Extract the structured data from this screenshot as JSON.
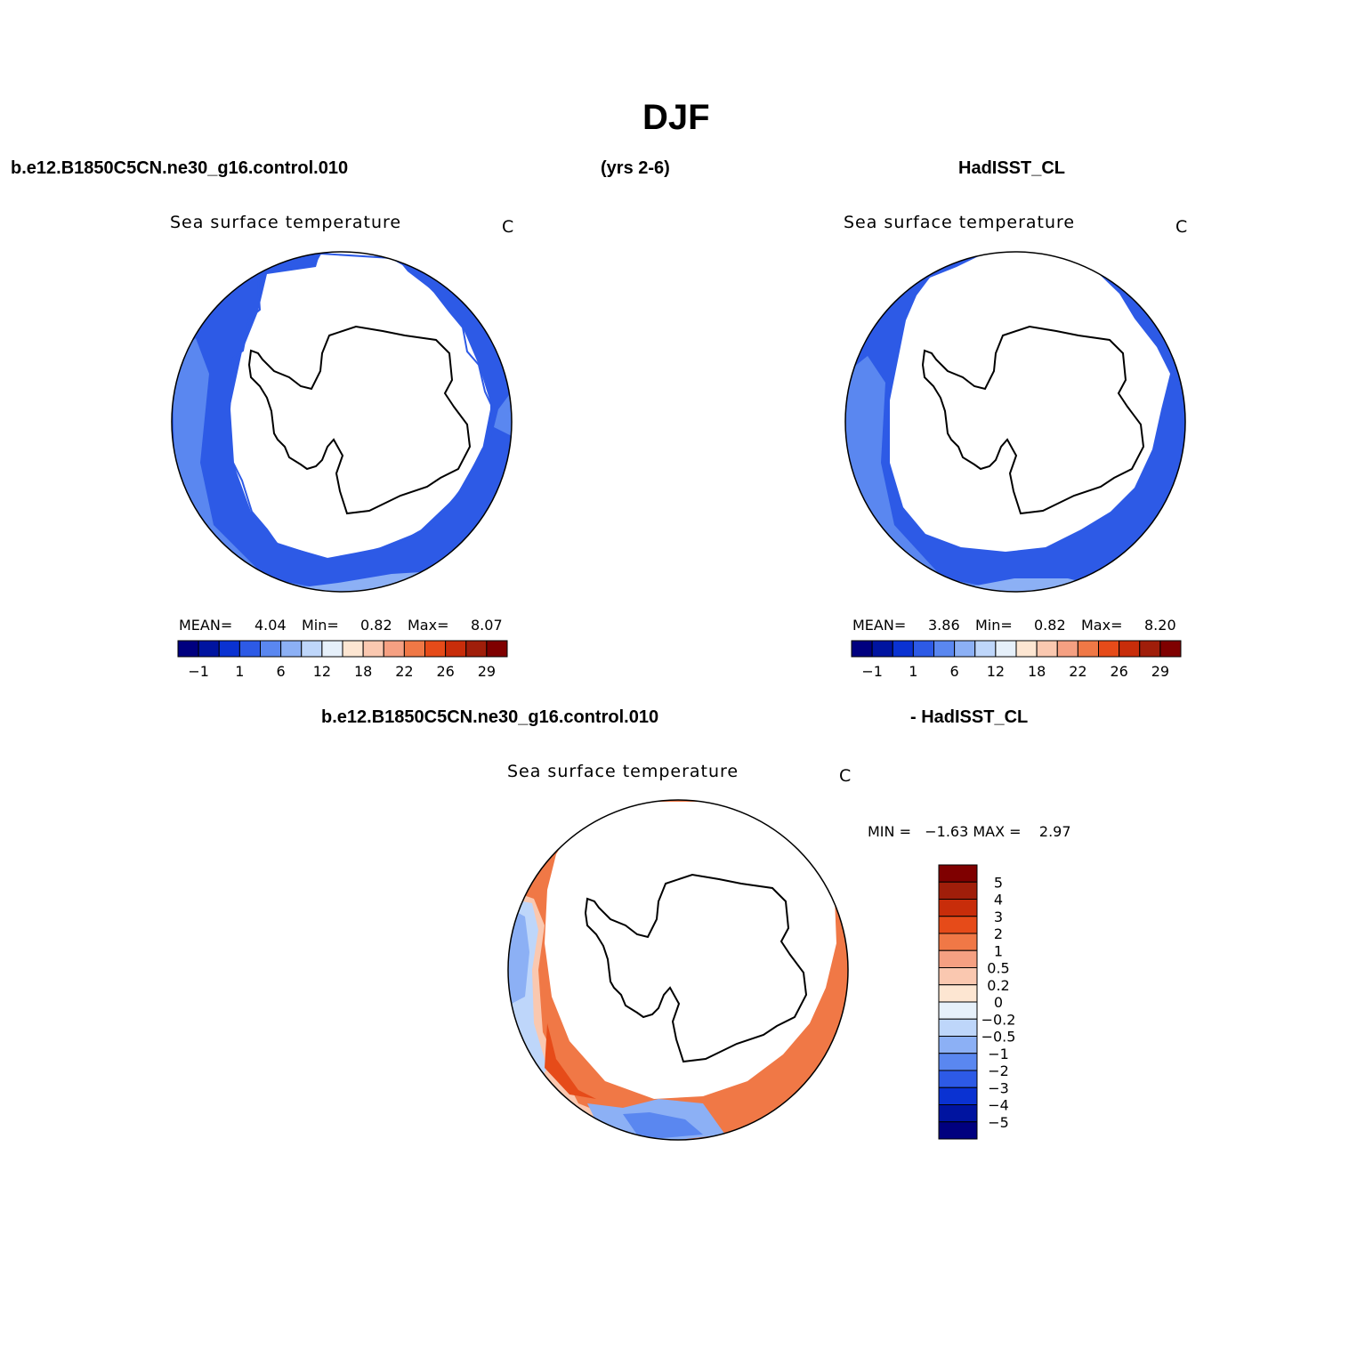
{
  "title": "DJF",
  "header": {
    "case_name": "b.e12.B1850C5CN.ne30_g16.control.010",
    "years": "(yrs 2-6)",
    "obs_name": "HadISST_CL",
    "diff_case_name": "b.e12.B1850C5CN.ne30_g16.control.010",
    "diff_obs_name": "- HadISST_CL"
  },
  "panels": {
    "model": {
      "title": "Sea surface temperature",
      "unit": "C",
      "mean_label": "MEAN=",
      "mean": "4.04",
      "min_label": "Min=",
      "min": "0.82",
      "max_label": "Max=",
      "max": "8.07"
    },
    "obs": {
      "title": "Sea surface temperature",
      "unit": "C",
      "mean_label": "MEAN=",
      "mean": "3.86",
      "min_label": "Min=",
      "min": "0.82",
      "max_label": "Max=",
      "max": "8.20"
    },
    "diff": {
      "title": "Sea surface temperature",
      "unit": "C",
      "minmax": "MIN =   −1.63 MAX =    2.97"
    }
  },
  "colorbar_abs": {
    "colors": [
      "#00007f",
      "#0014a0",
      "#0a32d2",
      "#2d5ae6",
      "#5a87f0",
      "#8cb0f5",
      "#bed6fa",
      "#e6f0fa",
      "#fde6d2",
      "#fac8b0",
      "#f5a082",
      "#f07846",
      "#e64b19",
      "#c82d0a",
      "#a01e0a",
      "#7f0000"
    ],
    "tick_labels": [
      "−1",
      "1",
      "6",
      "12",
      "18",
      "22",
      "26",
      "29"
    ]
  },
  "colorbar_diff": {
    "colors": [
      "#00007f",
      "#0014a0",
      "#0a32d2",
      "#2d5ae6",
      "#5a87f0",
      "#8cb0f5",
      "#bed6fa",
      "#e6f0fa",
      "#fde6d2",
      "#fac8b0",
      "#f5a082",
      "#f07846",
      "#e64b19",
      "#c82d0a",
      "#a01e0a",
      "#7f0000"
    ],
    "tick_labels": [
      "5",
      "4",
      "3",
      "2",
      "1",
      "0.5",
      "0.2",
      "0",
      "−0.2",
      "−0.5",
      "−1",
      "−2",
      "−3",
      "−4",
      "−5"
    ]
  }
}
